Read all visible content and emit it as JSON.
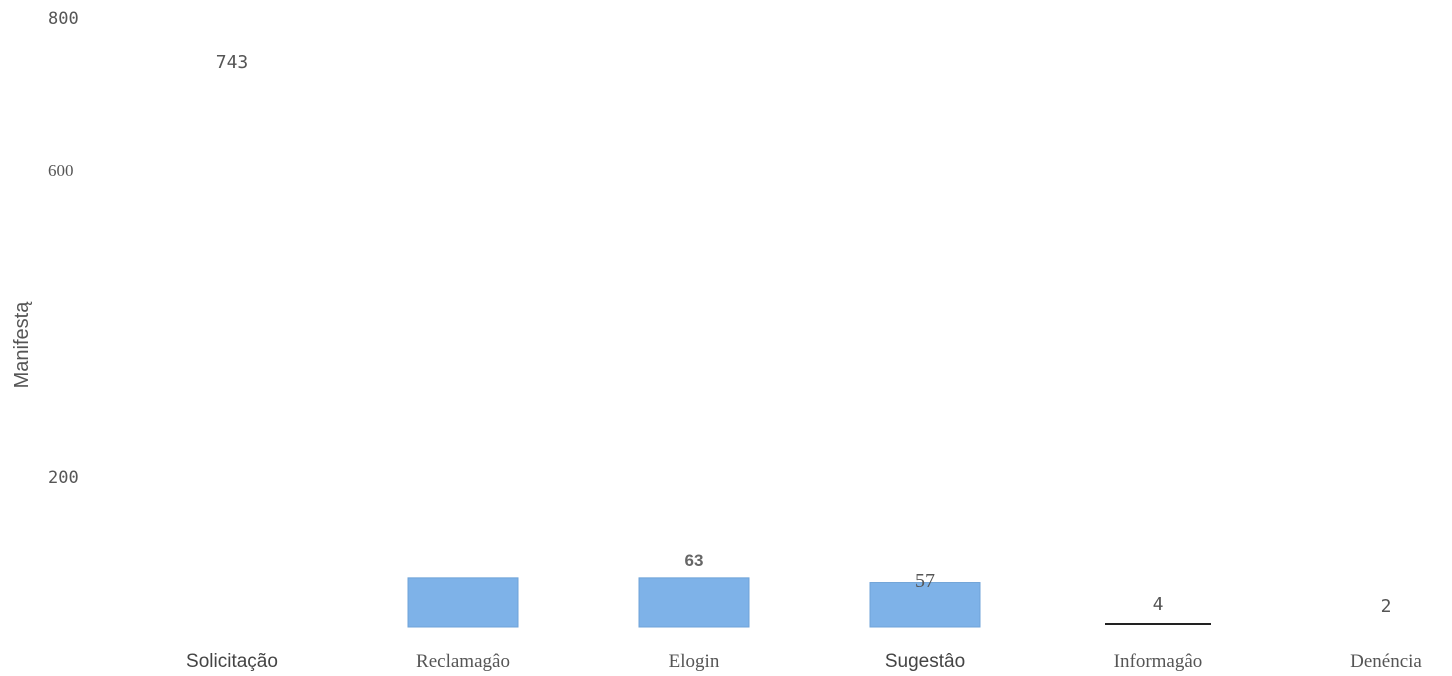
{
  "chart_data": {
    "type": "bar",
    "title": "",
    "xlabel": "",
    "ylabel": "Manifestą",
    "categories": [
      "Solicitação",
      "Reclamagâo",
      "Elogin",
      "Sugestâo",
      "Informagâo",
      "Denéncia"
    ],
    "values": [
      743,
      63,
      63,
      57,
      4,
      2
    ],
    "data_labels": [
      "743",
      "",
      "63",
      "57",
      "4",
      "2"
    ],
    "y_ticks": [
      800,
      600,
      200
    ],
    "y_tick_labels": [
      "800",
      "600",
      "200"
    ],
    "ylim": [
      0,
      800
    ],
    "grid": false,
    "legend": "none",
    "colors": {
      "bar": "#7eb2e8",
      "bar_edge": "#6fa3d8",
      "text": "#555555",
      "background": "#ffffff"
    }
  }
}
